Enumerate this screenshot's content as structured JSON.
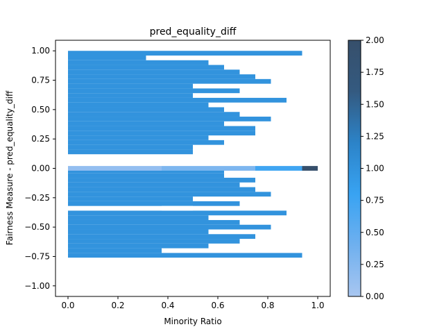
{
  "chart_data": {
    "type": "heatmap",
    "title": "pred_equality_diff",
    "xlabel": "Minority Ratio",
    "ylabel": "Fairness Measure - pred_equality_diff",
    "xlim": [
      -0.05,
      1.05
    ],
    "ylim": [
      -1.09,
      1.09
    ],
    "xticks": [
      "0.0",
      "0.2",
      "0.4",
      "0.6",
      "0.8",
      "1.0"
    ],
    "xtick_values": [
      0.0,
      0.2,
      0.4,
      0.6,
      0.8,
      1.0
    ],
    "yticks": [
      "1.00",
      "0.75",
      "0.50",
      "0.25",
      "0.00",
      "−0.25",
      "−0.50",
      "−0.75",
      "−1.00"
    ],
    "ytick_values": [
      1.0,
      0.75,
      0.5,
      0.25,
      0.0,
      -0.25,
      -0.5,
      -0.75,
      -1.0
    ],
    "colorbar": {
      "min": 0.0,
      "max": 2.0,
      "ticks": [
        "0.00",
        "0.25",
        "0.50",
        "0.75",
        "1.00",
        "1.25",
        "1.50",
        "1.75",
        "2.00"
      ],
      "tick_values": [
        0.0,
        0.25,
        0.5,
        0.75,
        1.0,
        1.25,
        1.5,
        1.75,
        2.0
      ],
      "colors": [
        "#a8c6f0",
        "#6fb0ef",
        "#38a3f2",
        "#2c83c8",
        "#345a80",
        "#364f6b"
      ]
    },
    "bin_height": 0.04,
    "rows": [
      {
        "y_start": 0.96,
        "x_end": 0.9375,
        "count": 1
      },
      {
        "y_start": 0.92,
        "x_end": 0.3125,
        "count": 1
      },
      {
        "y_start": 0.88,
        "x_end": 0.5625,
        "count": 1
      },
      {
        "y_start": 0.84,
        "x_end": 0.625,
        "count": 1
      },
      {
        "y_start": 0.8,
        "x_end": 0.6875,
        "count": 1
      },
      {
        "y_start": 0.76,
        "x_end": 0.75,
        "count": 1
      },
      {
        "y_start": 0.72,
        "x_end": 0.8125,
        "count": 1
      },
      {
        "y_start": 0.68,
        "x_end": 0.5,
        "count": 1
      },
      {
        "y_start": 0.64,
        "x_end": 0.6875,
        "count": 1
      },
      {
        "y_start": 0.6,
        "x_end": 0.5,
        "count": 1
      },
      {
        "y_start": 0.56,
        "x_end": 0.875,
        "count": 1
      },
      {
        "y_start": 0.52,
        "x_end": 0.5625,
        "count": 1
      },
      {
        "y_start": 0.48,
        "x_end": 0.625,
        "count": 1
      },
      {
        "y_start": 0.44,
        "x_end": 0.6875,
        "count": 1
      },
      {
        "y_start": 0.4,
        "x_end": 0.8125,
        "count": 1
      },
      {
        "y_start": 0.36,
        "x_end": 0.625,
        "count": 1
      },
      {
        "y_start": 0.32,
        "x_end": 0.75,
        "count": 1
      },
      {
        "y_start": 0.28,
        "x_end": 0.75,
        "count": 1
      },
      {
        "y_start": 0.24,
        "x_end": 0.5625,
        "count": 1
      },
      {
        "y_start": 0.2,
        "x_end": 0.625,
        "count": 1
      },
      {
        "y_start": 0.16,
        "x_end": 0.5,
        "count": 1
      },
      {
        "y_start": 0.12,
        "x_end": 0.5,
        "count": 1
      },
      {
        "y_start": -0.04,
        "x_end": 0.625,
        "count": 1
      },
      {
        "y_start": -0.08,
        "x_end": 0.625,
        "count": 1
      },
      {
        "y_start": -0.12,
        "x_end": 0.75,
        "count": 1
      },
      {
        "y_start": -0.16,
        "x_end": 0.6875,
        "count": 1
      },
      {
        "y_start": -0.2,
        "x_end": 0.75,
        "count": 1
      },
      {
        "y_start": -0.24,
        "x_end": 0.8125,
        "count": 1
      },
      {
        "y_start": -0.28,
        "x_end": 0.5,
        "count": 1
      },
      {
        "y_start": -0.32,
        "x_end": 0.6875,
        "count": 1
      },
      {
        "y_start": -0.4,
        "x_end": 0.875,
        "count": 1
      },
      {
        "y_start": -0.44,
        "x_end": 0.5625,
        "count": 1
      },
      {
        "y_start": -0.48,
        "x_end": 0.6875,
        "count": 1
      },
      {
        "y_start": -0.52,
        "x_end": 0.8125,
        "count": 1
      },
      {
        "y_start": -0.56,
        "x_end": 0.5625,
        "count": 1
      },
      {
        "y_start": -0.6,
        "x_end": 0.75,
        "count": 1
      },
      {
        "y_start": -0.64,
        "x_end": 0.6875,
        "count": 1
      },
      {
        "y_start": -0.68,
        "x_end": 0.5625,
        "count": 1
      },
      {
        "y_start": -0.72,
        "x_end": 0.375,
        "count": 1
      },
      {
        "y_start": -0.76,
        "x_end": 0.9375,
        "count": 1
      }
    ],
    "gaps": [
      {
        "y_start": -0.36,
        "x_start": 0.375,
        "x_end": 0.5,
        "count": 0
      }
    ],
    "zero_row": {
      "y_start": -0.02,
      "y_end": 0.02,
      "segments": [
        {
          "x_start": 0.0,
          "x_end": 0.375,
          "count": 0.15
        },
        {
          "x_start": 0.375,
          "x_end": 0.75,
          "count": 0.3
        },
        {
          "x_start": 0.75,
          "x_end": 0.9375,
          "count": 0.75
        },
        {
          "x_start": 0.9375,
          "x_end": 1.0,
          "count": 2.0
        }
      ]
    }
  }
}
